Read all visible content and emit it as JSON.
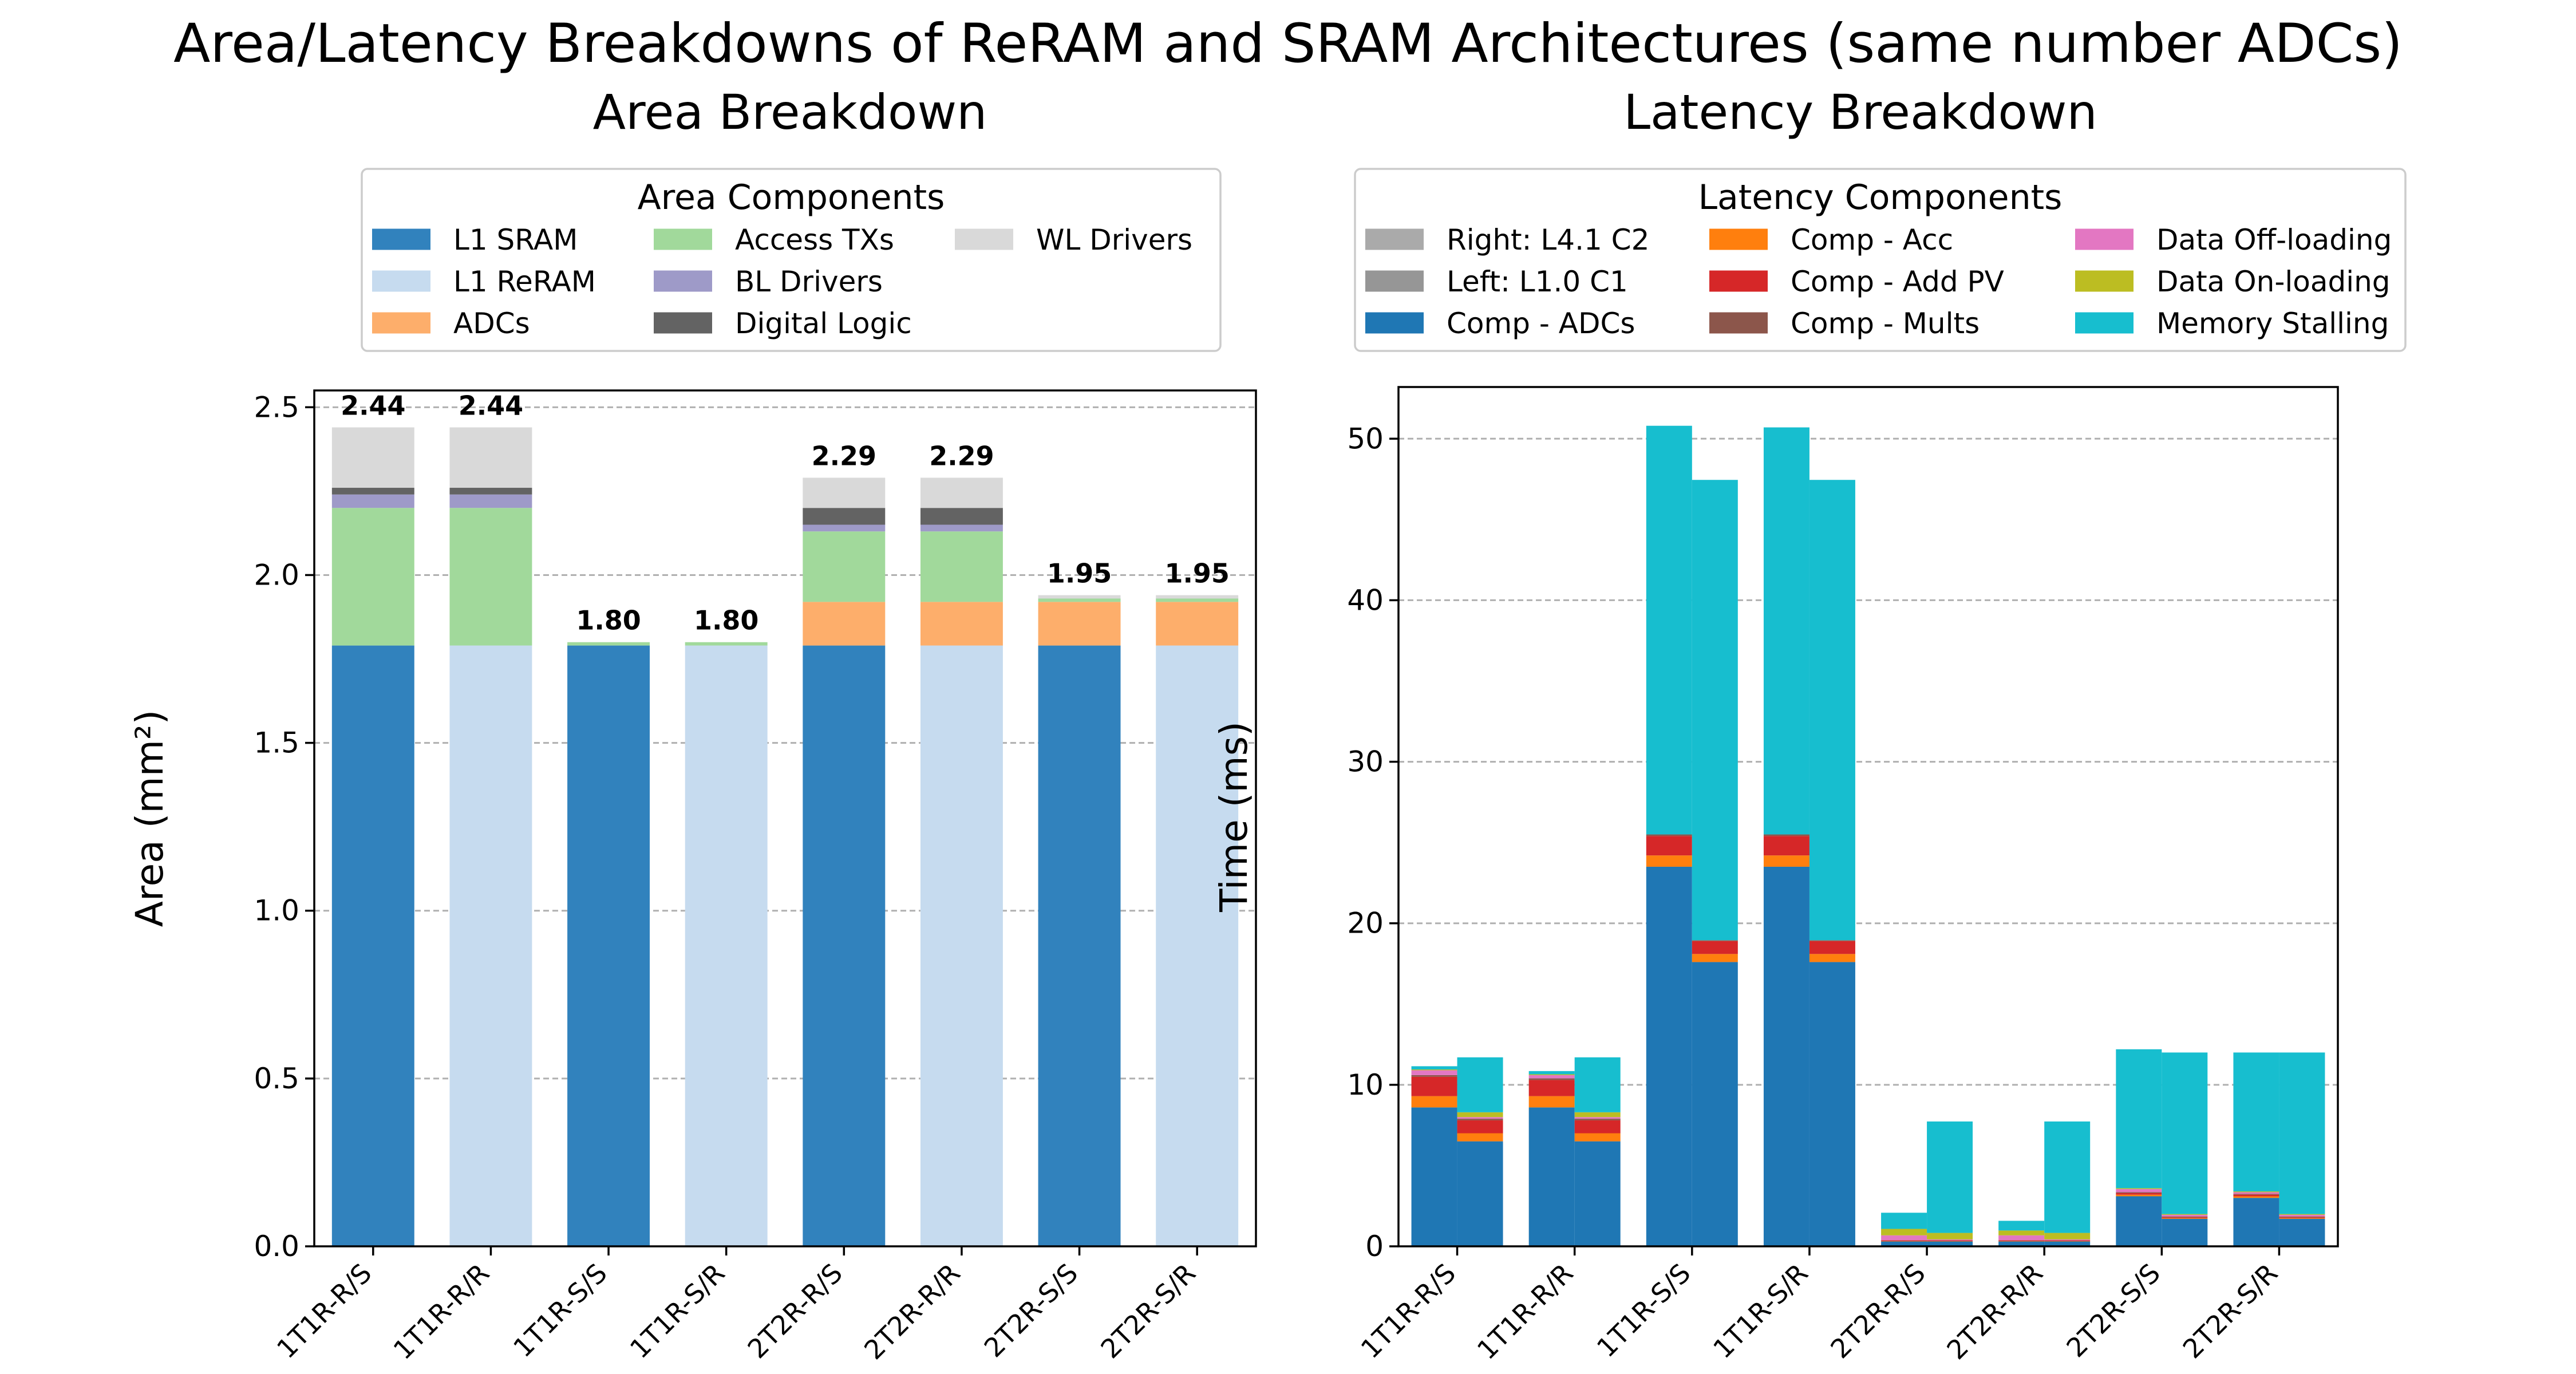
{
  "suptitle": "Area/Latency Breakdowns of ReRAM and SRAM Architectures (same number ADCs)",
  "chart_data": [
    {
      "type": "bar",
      "stacked": true,
      "title": "Area Breakdown",
      "xlabel": "",
      "ylabel": "Area (mm²)",
      "ylim": [
        0,
        2.55
      ],
      "yticks": [
        0.0,
        0.5,
        1.0,
        1.5,
        2.0,
        2.5
      ],
      "ytick_labels": [
        "0.0",
        "0.5",
        "1.0",
        "1.5",
        "2.0",
        "2.5"
      ],
      "grid": "y-dashed",
      "categories": [
        "1T1R-R/S",
        "1T1R-R/R",
        "1T1R-S/S",
        "1T1R-S/R",
        "2T2R-R/S",
        "2T2R-R/R",
        "2T2R-S/S",
        "2T2R-S/R"
      ],
      "legend": {
        "title": "Area Components",
        "placement": "top-center",
        "columns": 3,
        "order": [
          0,
          1,
          2,
          3,
          4,
          5,
          6
        ]
      },
      "totals": [
        "2.44",
        "2.44",
        "1.80",
        "1.80",
        "2.29",
        "2.29",
        "1.95",
        "1.95"
      ],
      "series": [
        {
          "name": "L1 SRAM",
          "color": "#3182bd",
          "values": [
            1.79,
            0,
            1.79,
            0,
            1.79,
            0,
            1.79,
            0
          ]
        },
        {
          "name": "L1 ReRAM",
          "color": "#c6dbef",
          "values": [
            0,
            1.79,
            0,
            1.79,
            0,
            1.79,
            0,
            1.79
          ]
        },
        {
          "name": "ADCs",
          "color": "#fdae6b",
          "values": [
            0,
            0,
            0,
            0,
            0.13,
            0.13,
            0.13,
            0.13
          ]
        },
        {
          "name": "Access TXs",
          "color": "#a1d99b",
          "values": [
            0.41,
            0.41,
            0.01,
            0.01,
            0.21,
            0.21,
            0.01,
            0.01
          ]
        },
        {
          "name": "BL Drivers",
          "color": "#9e9ac8",
          "values": [
            0.04,
            0.04,
            0,
            0,
            0.02,
            0.02,
            0,
            0
          ]
        },
        {
          "name": "Digital Logic",
          "color": "#636363",
          "values": [
            0.02,
            0.02,
            0,
            0,
            0.05,
            0.05,
            0,
            0
          ]
        },
        {
          "name": "WL Drivers",
          "color": "#d9d9d9",
          "values": [
            0.18,
            0.18,
            0,
            0,
            0.09,
            0.09,
            0.01,
            0.01
          ]
        }
      ]
    },
    {
      "type": "bar",
      "stacked": true,
      "grouped_pairs": true,
      "title": "Latency Breakdown",
      "xlabel": "",
      "ylabel": "Time (ms)",
      "ylim": [
        0,
        53.2
      ],
      "yticks": [
        0,
        10,
        20,
        30,
        40,
        50
      ],
      "ytick_labels": [
        "0",
        "10",
        "20",
        "30",
        "40",
        "50"
      ],
      "grid": "y-dashed",
      "categories": [
        "1T1R-R/S",
        "1T1R-R/R",
        "1T1R-S/S",
        "1T1R-S/R",
        "2T2R-R/S",
        "2T2R-R/R",
        "2T2R-S/S",
        "2T2R-S/R"
      ],
      "legend": {
        "title": "Latency Components",
        "placement": "top-center",
        "columns": 3,
        "order": [
          0,
          1,
          2,
          3,
          4,
          5,
          6,
          7,
          8,
          9
        ]
      },
      "series": [
        {
          "name": "Right: L4.1 C2",
          "color": "#aaaaaa",
          "legend_only": true
        },
        {
          "name": "Left: L1.0 C1",
          "color": "#969696",
          "legend_only": true
        },
        {
          "name": "Comp - ADCs",
          "color": "#1f77b4",
          "left": [
            8.6,
            8.6,
            23.5,
            23.5,
            0.3,
            0.3,
            3.1,
            3.0
          ],
          "right": [
            6.5,
            6.5,
            17.6,
            17.6,
            0.3,
            0.3,
            1.7,
            1.7
          ]
        },
        {
          "name": "Comp - Acc",
          "color": "#ff7f0e",
          "left": [
            0.7,
            0.7,
            0.7,
            0.7,
            0.02,
            0.02,
            0.1,
            0.1
          ],
          "right": [
            0.5,
            0.5,
            0.5,
            0.5,
            0.02,
            0.02,
            0.05,
            0.05
          ]
        },
        {
          "name": "Comp - Add PV",
          "color": "#d62728",
          "left": [
            1.2,
            1.0,
            1.2,
            1.2,
            0.05,
            0.05,
            0.1,
            0.1
          ],
          "right": [
            0.8,
            0.8,
            0.8,
            0.8,
            0.05,
            0.05,
            0.05,
            0.05
          ]
        },
        {
          "name": "Comp - Mults",
          "color": "#8c564b",
          "left": [
            0.1,
            0.1,
            0.1,
            0.1,
            0.01,
            0.01,
            0.05,
            0.05
          ],
          "right": [
            0.1,
            0.1,
            0.05,
            0.05,
            0.01,
            0.01,
            0.05,
            0.05
          ]
        },
        {
          "name": "Data Off-loading",
          "color": "#e377c2",
          "left": [
            0.3,
            0.2,
            0,
            0,
            0.3,
            0.3,
            0.2,
            0.1
          ],
          "right": [
            0.1,
            0.1,
            0,
            0,
            0.05,
            0.05,
            0.1,
            0.1
          ]
        },
        {
          "name": "Data On-loading",
          "color": "#bcbd22",
          "left": [
            0.05,
            0.05,
            0,
            0,
            0.4,
            0.3,
            0.05,
            0.05
          ],
          "right": [
            0.3,
            0.3,
            0,
            0,
            0.4,
            0.4,
            0.05,
            0.05
          ]
        },
        {
          "name": "Memory Stalling",
          "color": "#17becf",
          "left": [
            0.2,
            0.2,
            25.3,
            25.2,
            1.0,
            0.6,
            8.6,
            8.6
          ],
          "right": [
            3.4,
            3.4,
            28.5,
            28.5,
            6.9,
            6.9,
            10.0,
            10.0
          ]
        }
      ]
    }
  ]
}
